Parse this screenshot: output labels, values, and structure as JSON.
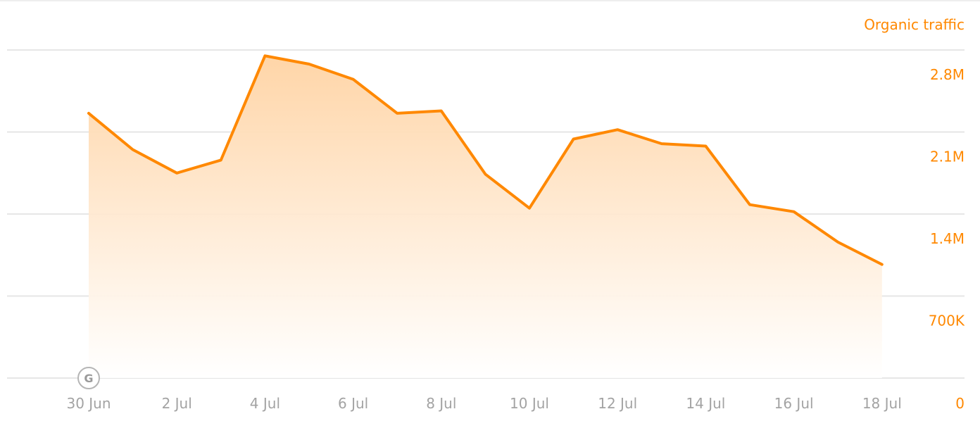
{
  "chart_data": {
    "type": "area",
    "title": "",
    "series_label": "Organic traffic",
    "x": [
      "30 Jun",
      "1 Jul",
      "2 Jul",
      "3 Jul",
      "4 Jul",
      "5 Jul",
      "6 Jul",
      "7 Jul",
      "8 Jul",
      "9 Jul",
      "10 Jul",
      "11 Jul",
      "12 Jul",
      "13 Jul",
      "14 Jul",
      "15 Jul",
      "16 Jul",
      "17 Jul",
      "18 Jul"
    ],
    "x_tick_labels": [
      "30 Jun",
      "2 Jul",
      "4 Jul",
      "6 Jul",
      "8 Jul",
      "10 Jul",
      "12 Jul",
      "14 Jul",
      "16 Jul",
      "18 Jul"
    ],
    "series": [
      {
        "values": [
          2260000,
          1950000,
          1750000,
          1860000,
          2750000,
          2680000,
          2550000,
          2260000,
          2280000,
          1740000,
          1450000,
          2040000,
          2120000,
          2000000,
          1980000,
          1480000,
          1420000,
          1160000,
          970000
        ]
      }
    ],
    "y_ticks": [
      0,
      700000,
      1400000,
      2100000,
      2800000
    ],
    "y_tick_labels": [
      "0",
      "700K",
      "1.4M",
      "2.1M",
      "2.8M"
    ],
    "ylim": [
      0,
      2800000
    ],
    "grid": true,
    "annotations": [
      {
        "x": "30 Jun",
        "label": "G",
        "icon": "google-update-icon"
      }
    ],
    "colors": {
      "line": "#ff8800",
      "fill": "#ffd3a3",
      "axis_text": "#a3a3a3",
      "grid": "#e6e6e6"
    }
  }
}
